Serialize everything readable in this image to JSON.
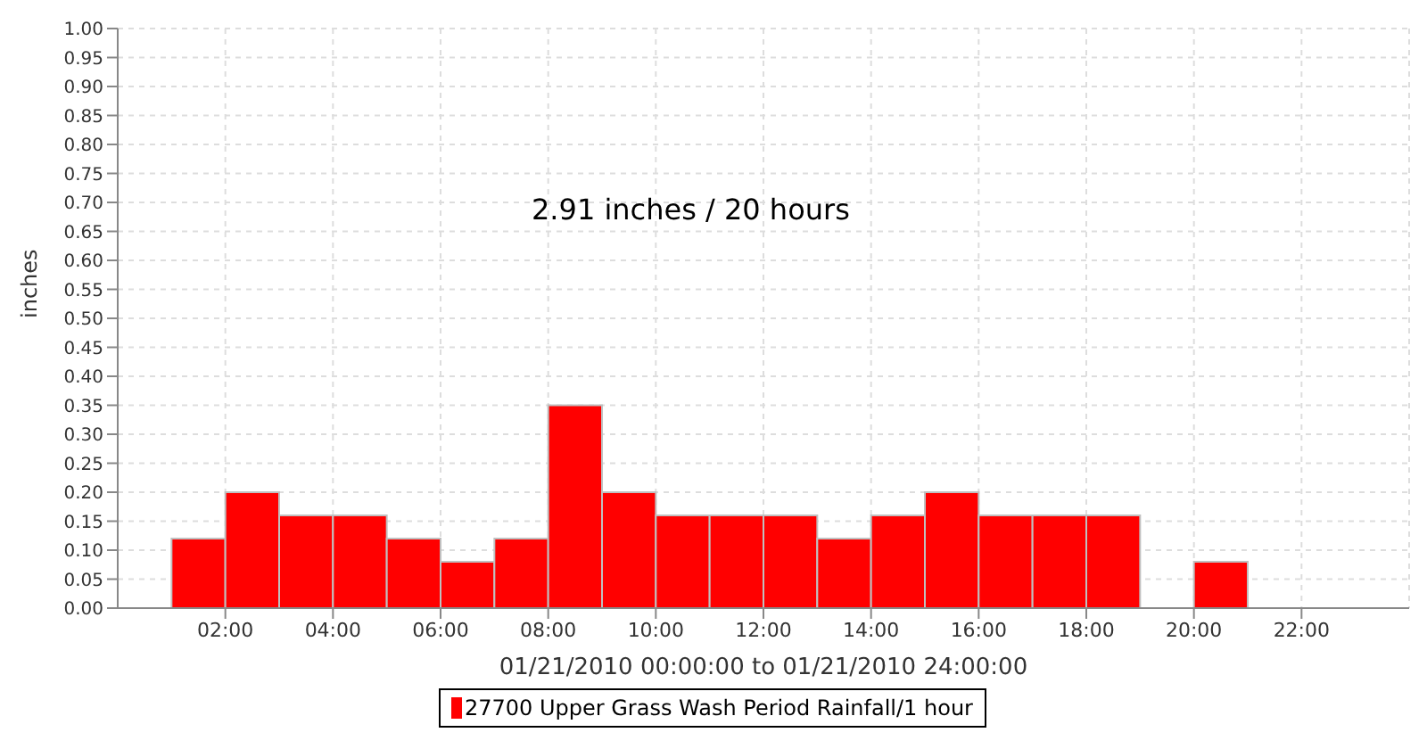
{
  "chart_data": {
    "type": "histogram",
    "annotations": [
      "2.91 inches / 20 hours"
    ],
    "xlabel": "01/21/2010 00:00:00 to 01/21/2010 24:00:00",
    "ylabel": "inches",
    "bins": [
      1,
      2,
      3,
      4,
      5,
      6,
      7,
      8,
      9,
      10,
      11,
      12,
      13,
      14,
      15,
      16,
      17,
      18,
      19,
      20,
      21
    ],
    "series": [
      {
        "name": "27700 Upper Grass Wash Period Rainfall/1 hour",
        "color": "#ff0000",
        "values": [
          0.12,
          0.2,
          0.16,
          0.16,
          0.12,
          0.08,
          0.12,
          0.35,
          0.2,
          0.16,
          0.16,
          0.16,
          0.12,
          0.16,
          0.2,
          0.16,
          0.16,
          0.16,
          0,
          0.08
        ]
      }
    ],
    "xlim": [
      0,
      24
    ],
    "xticks": [
      {
        "value": 2,
        "label": "02:00"
      },
      {
        "value": 4,
        "label": "04:00"
      },
      {
        "value": 6,
        "label": "06:00"
      },
      {
        "value": 8,
        "label": "08:00"
      },
      {
        "value": 10,
        "label": "10:00"
      },
      {
        "value": 12,
        "label": "12:00"
      },
      {
        "value": 14,
        "label": "14:00"
      },
      {
        "value": 16,
        "label": "16:00"
      },
      {
        "value": 18,
        "label": "18:00"
      },
      {
        "value": 20,
        "label": "20:00"
      },
      {
        "value": 22,
        "label": "22:00"
      }
    ],
    "ylim": [
      0,
      1
    ],
    "yticks": [
      {
        "value": 0,
        "label": "0.00"
      },
      {
        "value": 0.05,
        "label": "0.05"
      },
      {
        "value": 0.1,
        "label": "0.10"
      },
      {
        "value": 0.15,
        "label": "0.15"
      },
      {
        "value": 0.2,
        "label": "0.20"
      },
      {
        "value": 0.25,
        "label": "0.25"
      },
      {
        "value": 0.3,
        "label": "0.30"
      },
      {
        "value": 0.35,
        "label": "0.35"
      },
      {
        "value": 0.4,
        "label": "0.40"
      },
      {
        "value": 0.45,
        "label": "0.45"
      },
      {
        "value": 0.5,
        "label": "0.50"
      },
      {
        "value": 0.55,
        "label": "0.55"
      },
      {
        "value": 0.6,
        "label": "0.60"
      },
      {
        "value": 0.65,
        "label": "0.65"
      },
      {
        "value": 0.7,
        "label": "0.70"
      },
      {
        "value": 0.75,
        "label": "0.75"
      },
      {
        "value": 0.8,
        "label": "0.80"
      },
      {
        "value": 0.85,
        "label": "0.85"
      },
      {
        "value": 0.9,
        "label": "0.90"
      },
      {
        "value": 0.95,
        "label": "0.95"
      },
      {
        "value": 1,
        "label": "1.00"
      }
    ],
    "grid": true,
    "legend": "bottom"
  }
}
